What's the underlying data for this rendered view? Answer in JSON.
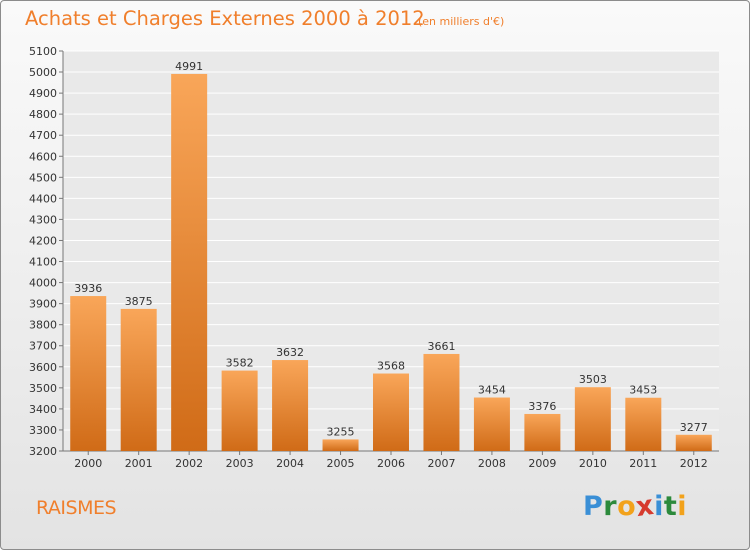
{
  "chart_data": {
    "type": "bar",
    "title": "Achats et Charges Externes 2000 à 2012",
    "subtitle": "(en milliers d'€)",
    "categories": [
      "2000",
      "2001",
      "2002",
      "2003",
      "2004",
      "2005",
      "2006",
      "2007",
      "2008",
      "2009",
      "2010",
      "2011",
      "2012"
    ],
    "values": [
      3936,
      3875,
      4991,
      3582,
      3632,
      3255,
      3568,
      3661,
      3454,
      3376,
      3503,
      3453,
      3277
    ],
    "ylim": [
      3200,
      5100
    ],
    "yticks": [
      3200,
      3300,
      3400,
      3500,
      3600,
      3700,
      3800,
      3900,
      4000,
      4100,
      4200,
      4300,
      4400,
      4500,
      4600,
      4700,
      4800,
      4900,
      5000,
      5100
    ],
    "grid": true,
    "bar_color_light": "#f9a659",
    "bar_color_dark": "#d06b17",
    "text_color": "#f07f2c"
  },
  "footer": {
    "town": "RAISMES"
  },
  "logo": {
    "letters": [
      {
        "ch": "P",
        "color": "#3a8fd6"
      },
      {
        "ch": "r",
        "color": "#2c8a3c"
      },
      {
        "ch": "o",
        "color": "#f2a21b"
      },
      {
        "ch": "x",
        "color": "#d63a2e"
      },
      {
        "ch": "i",
        "color": "#3a8fd6"
      },
      {
        "ch": "t",
        "color": "#2c8a3c"
      },
      {
        "ch": "i",
        "color": "#f2a21b"
      }
    ]
  }
}
